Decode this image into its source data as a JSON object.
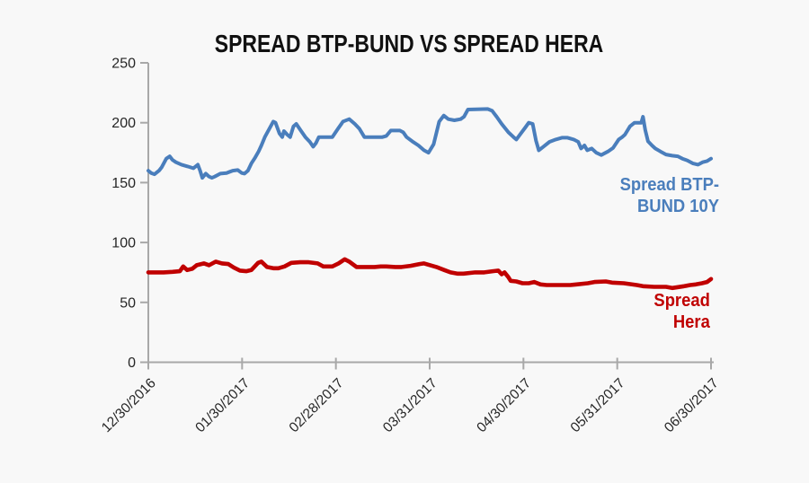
{
  "title": "SPREAD BTP-BUND VS SPREAD HERA",
  "colors": {
    "btp_blue": "#4a7ebc",
    "hera_red": "#c00000",
    "axis_gray": "#a8a8a8",
    "text_dark": "#262626",
    "background": "#f8f8f8"
  },
  "series_labels": {
    "btp": "Spread BTP-\nBUND 10Y",
    "hera": "Spread\nHera"
  },
  "chart_data": {
    "type": "line",
    "title": "SPREAD BTP-BUND VS SPREAD HERA",
    "xlabel": "",
    "ylabel": "",
    "ylim": [
      0,
      250
    ],
    "y_ticks": [
      0,
      50,
      100,
      150,
      200,
      250
    ],
    "x_tick_labels": [
      "12/30/2016",
      "01/30/2017",
      "02/28/2017",
      "03/31/2017",
      "04/30/2017",
      "05/31/2017",
      "06/30/2017"
    ],
    "grid": false,
    "legend_position": "inline-right",
    "series": [
      {
        "name": "Spread BTP-BUND 10Y",
        "color": "#4a7ebc",
        "points": [
          [
            0.0,
            160
          ],
          [
            0.005,
            158
          ],
          [
            0.011,
            157
          ],
          [
            0.019,
            160
          ],
          [
            0.024,
            163
          ],
          [
            0.032,
            170
          ],
          [
            0.038,
            172
          ],
          [
            0.043,
            169
          ],
          [
            0.049,
            167
          ],
          [
            0.059,
            165
          ],
          [
            0.07,
            163.5
          ],
          [
            0.08,
            162
          ],
          [
            0.088,
            165
          ],
          [
            0.092,
            160
          ],
          [
            0.096,
            154
          ],
          [
            0.102,
            157.5
          ],
          [
            0.108,
            155
          ],
          [
            0.113,
            154
          ],
          [
            0.118,
            155
          ],
          [
            0.128,
            157.5
          ],
          [
            0.139,
            158
          ],
          [
            0.15,
            160
          ],
          [
            0.159,
            160.5
          ],
          [
            0.166,
            158
          ],
          [
            0.171,
            157.5
          ],
          [
            0.177,
            160
          ],
          [
            0.183,
            166
          ],
          [
            0.19,
            171
          ],
          [
            0.196,
            176
          ],
          [
            0.201,
            181
          ],
          [
            0.207,
            188
          ],
          [
            0.222,
            201
          ],
          [
            0.226,
            200
          ],
          [
            0.233,
            191
          ],
          [
            0.238,
            188
          ],
          [
            0.241,
            193
          ],
          [
            0.247,
            190
          ],
          [
            0.252,
            188
          ],
          [
            0.258,
            197
          ],
          [
            0.263,
            199
          ],
          [
            0.271,
            193.5
          ],
          [
            0.279,
            188
          ],
          [
            0.287,
            184
          ],
          [
            0.293,
            180
          ],
          [
            0.298,
            183
          ],
          [
            0.303,
            188
          ],
          [
            0.327,
            188
          ],
          [
            0.337,
            195
          ],
          [
            0.346,
            201
          ],
          [
            0.357,
            203
          ],
          [
            0.367,
            199
          ],
          [
            0.375,
            195
          ],
          [
            0.384,
            188
          ],
          [
            0.416,
            188
          ],
          [
            0.423,
            189
          ],
          [
            0.431,
            193.5
          ],
          [
            0.447,
            193.5
          ],
          [
            0.453,
            192
          ],
          [
            0.459,
            188
          ],
          [
            0.469,
            184.5
          ],
          [
            0.48,
            181
          ],
          [
            0.49,
            177
          ],
          [
            0.498,
            175
          ],
          [
            0.507,
            182
          ],
          [
            0.517,
            201
          ],
          [
            0.525,
            206
          ],
          [
            0.533,
            203
          ],
          [
            0.544,
            202
          ],
          [
            0.555,
            203
          ],
          [
            0.561,
            205
          ],
          [
            0.568,
            211
          ],
          [
            0.603,
            211.5
          ],
          [
            0.611,
            210
          ],
          [
            0.619,
            205
          ],
          [
            0.628,
            199
          ],
          [
            0.64,
            192
          ],
          [
            0.649,
            188
          ],
          [
            0.654,
            186
          ],
          [
            0.662,
            191
          ],
          [
            0.67,
            196
          ],
          [
            0.676,
            200
          ],
          [
            0.683,
            199
          ],
          [
            0.689,
            185
          ],
          [
            0.694,
            177
          ],
          [
            0.702,
            180
          ],
          [
            0.713,
            184
          ],
          [
            0.724,
            186
          ],
          [
            0.735,
            187.5
          ],
          [
            0.745,
            187.5
          ],
          [
            0.756,
            186
          ],
          [
            0.764,
            184
          ],
          [
            0.769,
            178.5
          ],
          [
            0.775,
            181
          ],
          [
            0.78,
            177
          ],
          [
            0.788,
            178.5
          ],
          [
            0.796,
            175
          ],
          [
            0.805,
            173
          ],
          [
            0.817,
            176
          ],
          [
            0.826,
            179
          ],
          [
            0.836,
            186
          ],
          [
            0.842,
            188
          ],
          [
            0.847,
            190
          ],
          [
            0.856,
            197
          ],
          [
            0.864,
            200
          ],
          [
            0.876,
            200
          ],
          [
            0.879,
            205
          ],
          [
            0.883,
            194
          ],
          [
            0.888,
            184.5
          ],
          [
            0.895,
            181
          ],
          [
            0.901,
            178.5
          ],
          [
            0.91,
            176
          ],
          [
            0.92,
            173.5
          ],
          [
            0.931,
            172.5
          ],
          [
            0.941,
            172
          ],
          [
            0.949,
            170
          ],
          [
            0.958,
            168.5
          ],
          [
            0.968,
            166
          ],
          [
            0.977,
            165
          ],
          [
            0.985,
            167
          ],
          [
            0.993,
            168
          ],
          [
            1.0,
            170
          ]
        ]
      },
      {
        "name": "Spread Hera",
        "color": "#c00000",
        "points": [
          [
            0.0,
            75
          ],
          [
            0.014,
            75
          ],
          [
            0.027,
            75
          ],
          [
            0.043,
            75.5
          ],
          [
            0.056,
            76
          ],
          [
            0.062,
            80
          ],
          [
            0.069,
            77
          ],
          [
            0.078,
            78
          ],
          [
            0.086,
            81
          ],
          [
            0.099,
            82.5
          ],
          [
            0.108,
            81
          ],
          [
            0.12,
            84
          ],
          [
            0.131,
            82.5
          ],
          [
            0.142,
            82
          ],
          [
            0.152,
            79
          ],
          [
            0.163,
            76.5
          ],
          [
            0.174,
            76
          ],
          [
            0.183,
            77
          ],
          [
            0.195,
            83
          ],
          [
            0.201,
            84
          ],
          [
            0.211,
            79.5
          ],
          [
            0.222,
            78.5
          ],
          [
            0.231,
            78.5
          ],
          [
            0.242,
            80
          ],
          [
            0.254,
            83
          ],
          [
            0.27,
            83.5
          ],
          [
            0.285,
            83.5
          ],
          [
            0.301,
            82.5
          ],
          [
            0.311,
            80
          ],
          [
            0.327,
            80
          ],
          [
            0.338,
            82.5
          ],
          [
            0.349,
            86
          ],
          [
            0.357,
            84
          ],
          [
            0.37,
            79.5
          ],
          [
            0.386,
            79.5
          ],
          [
            0.402,
            79.5
          ],
          [
            0.413,
            80
          ],
          [
            0.423,
            80
          ],
          [
            0.439,
            79.5
          ],
          [
            0.45,
            79.5
          ],
          [
            0.466,
            80.5
          ],
          [
            0.482,
            82
          ],
          [
            0.49,
            82.5
          ],
          [
            0.501,
            81
          ],
          [
            0.512,
            79.5
          ],
          [
            0.526,
            77
          ],
          [
            0.537,
            75
          ],
          [
            0.549,
            74
          ],
          [
            0.56,
            74
          ],
          [
            0.581,
            75
          ],
          [
            0.597,
            75
          ],
          [
            0.612,
            76
          ],
          [
            0.622,
            76.5
          ],
          [
            0.628,
            73.5
          ],
          [
            0.633,
            75
          ],
          [
            0.64,
            71
          ],
          [
            0.644,
            68
          ],
          [
            0.654,
            67.5
          ],
          [
            0.665,
            66
          ],
          [
            0.676,
            66
          ],
          [
            0.686,
            67
          ],
          [
            0.697,
            65
          ],
          [
            0.708,
            64.5
          ],
          [
            0.729,
            64.5
          ],
          [
            0.75,
            64.5
          ],
          [
            0.761,
            65
          ],
          [
            0.781,
            66
          ],
          [
            0.793,
            67
          ],
          [
            0.813,
            67.5
          ],
          [
            0.824,
            66.5
          ],
          [
            0.845,
            66
          ],
          [
            0.868,
            64.5
          ],
          [
            0.879,
            63.5
          ],
          [
            0.899,
            63
          ],
          [
            0.92,
            63
          ],
          [
            0.931,
            62
          ],
          [
            0.952,
            63.5
          ],
          [
            0.963,
            64.5
          ],
          [
            0.973,
            65
          ],
          [
            0.984,
            66
          ],
          [
            0.993,
            67
          ],
          [
            1.0,
            69.5
          ]
        ]
      }
    ]
  }
}
